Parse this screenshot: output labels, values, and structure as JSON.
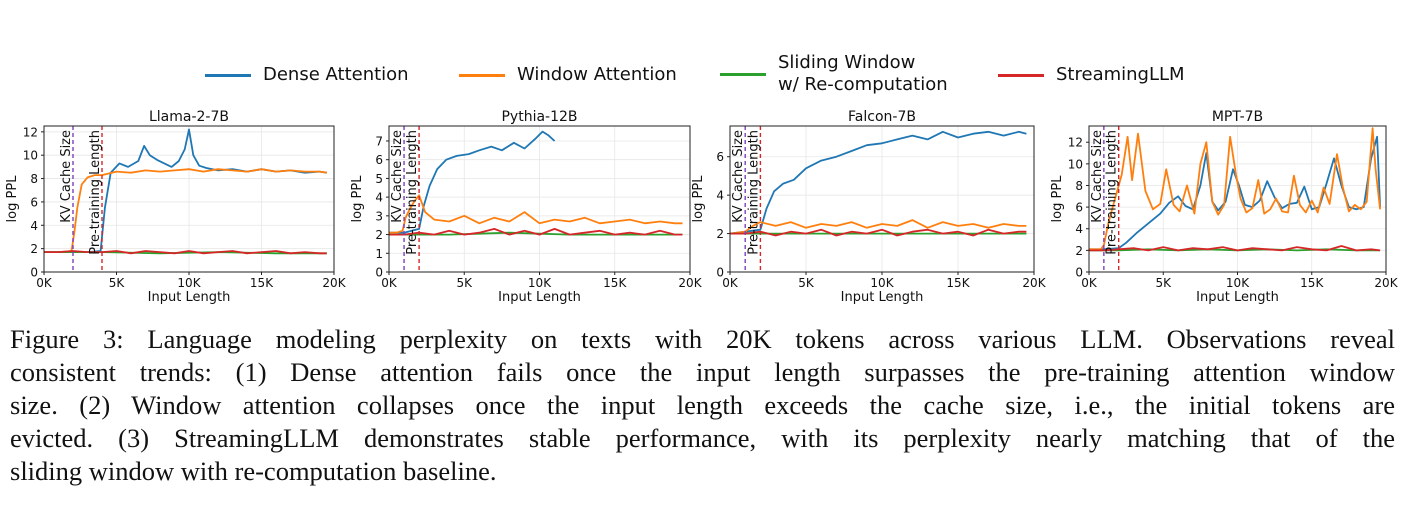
{
  "legend": [
    {
      "label": "Dense Attention",
      "color": "#1f77b4"
    },
    {
      "label": "Window Attention",
      "color": "#ff7f0e"
    },
    {
      "label": "Sliding Window\nw/ Re-computation",
      "color": "#2ca02c"
    },
    {
      "label": "StreamingLLM",
      "color": "#d62728"
    }
  ],
  "chart_data": [
    {
      "type": "line",
      "title": "Llama-2-7B",
      "xlabel": "Input Length",
      "ylabel": "log PPL",
      "xlim": [
        0,
        20000
      ],
      "ylim": [
        0,
        12.5
      ],
      "xticks": [
        0,
        5000,
        10000,
        15000,
        20000
      ],
      "xtick_labels": [
        "0K",
        "5K",
        "10K",
        "15K",
        "20K"
      ],
      "yticks": [
        0,
        2,
        4,
        6,
        8,
        10,
        12
      ],
      "grid": true,
      "vlines": [
        {
          "x": 2000,
          "label": "KV Cache Size",
          "color": "#7f3fbf"
        },
        {
          "x": 4000,
          "label": "Pre-training Length",
          "color": "#d62728"
        }
      ],
      "series": [
        {
          "name": "Dense Attention",
          "color": "#1f77b4",
          "x": [
            0,
            1000,
            2000,
            3000,
            3900,
            4200,
            4600,
            5200,
            5800,
            6500,
            6900,
            7300,
            7800,
            8300,
            8800,
            9300,
            9700,
            10000,
            10300,
            10700,
            11200,
            12000,
            13000,
            14000,
            15000,
            16000,
            17000,
            18000,
            19000,
            19500
          ],
          "y": [
            1.7,
            1.7,
            1.7,
            1.7,
            1.8,
            5.5,
            8.5,
            9.3,
            9.0,
            9.5,
            10.8,
            10.0,
            9.6,
            9.3,
            9.0,
            9.5,
            10.5,
            12.2,
            10.0,
            9.1,
            8.9,
            8.7,
            8.8,
            8.6,
            8.8,
            8.6,
            8.7,
            8.5,
            8.6,
            8.5
          ]
        },
        {
          "name": "Window Attention",
          "color": "#ff7f0e",
          "x": [
            0,
            1000,
            1900,
            2100,
            2300,
            2600,
            3000,
            3500,
            4000,
            5000,
            6000,
            7000,
            8000,
            9000,
            10000,
            11000,
            12000,
            13000,
            14000,
            15000,
            16000,
            17000,
            18000,
            19000,
            19500
          ],
          "y": [
            1.7,
            1.7,
            1.8,
            3.5,
            5.5,
            7.5,
            8.1,
            8.3,
            8.3,
            8.6,
            8.5,
            8.7,
            8.6,
            8.7,
            8.8,
            8.6,
            8.8,
            8.7,
            8.6,
            8.8,
            8.6,
            8.7,
            8.6,
            8.6,
            8.5
          ]
        },
        {
          "name": "Sliding Window w/ Re-computation",
          "color": "#2ca02c",
          "x": [
            0,
            4000,
            8000,
            12000,
            16000,
            19500
          ],
          "y": [
            1.7,
            1.7,
            1.6,
            1.7,
            1.6,
            1.6
          ]
        },
        {
          "name": "StreamingLLM",
          "color": "#d62728",
          "x": [
            0,
            1000,
            2000,
            3000,
            4000,
            5000,
            6000,
            7000,
            8000,
            9000,
            10000,
            11000,
            12000,
            13000,
            14000,
            15000,
            16000,
            17000,
            18000,
            19000,
            19500
          ],
          "y": [
            1.7,
            1.7,
            1.8,
            1.7,
            1.7,
            1.8,
            1.6,
            1.8,
            1.7,
            1.6,
            1.8,
            1.6,
            1.7,
            1.8,
            1.6,
            1.7,
            1.8,
            1.6,
            1.7,
            1.6,
            1.6
          ]
        }
      ]
    },
    {
      "type": "line",
      "title": "Pythia-12B",
      "xlabel": "Input Length",
      "ylabel": "log PPL",
      "xlim": [
        0,
        20000
      ],
      "ylim": [
        0,
        7.8
      ],
      "xticks": [
        0,
        5000,
        10000,
        15000,
        20000
      ],
      "xtick_labels": [
        "0K",
        "5K",
        "10K",
        "15K",
        "20K"
      ],
      "yticks": [
        0,
        1,
        2,
        3,
        4,
        5,
        6,
        7
      ],
      "grid": true,
      "vlines": [
        {
          "x": 1000,
          "label": "KV Cache Size",
          "color": "#7f3fbf"
        },
        {
          "x": 2000,
          "label": "Pre-training Length",
          "color": "#d62728"
        }
      ],
      "series": [
        {
          "name": "Dense Attention",
          "color": "#1f77b4",
          "x": [
            0,
            500,
            1000,
            1500,
            2000,
            2300,
            2700,
            3200,
            3800,
            4500,
            5300,
            6000,
            6800,
            7500,
            8300,
            9000,
            9700,
            10200,
            10600,
            11000
          ],
          "y": [
            2.1,
            2.1,
            2.1,
            2.2,
            2.3,
            3.5,
            4.6,
            5.5,
            6.0,
            6.2,
            6.3,
            6.5,
            6.7,
            6.5,
            6.9,
            6.6,
            7.1,
            7.5,
            7.3,
            7.0
          ]
        },
        {
          "name": "Window Attention",
          "color": "#ff7f0e",
          "x": [
            0,
            500,
            900,
            1100,
            1400,
            1700,
            2000,
            2400,
            3000,
            4000,
            5000,
            6000,
            7000,
            8000,
            9000,
            10000,
            11000,
            12000,
            13000,
            14000,
            15000,
            16000,
            17000,
            18000,
            19000,
            19500
          ],
          "y": [
            2.1,
            2.1,
            2.2,
            2.9,
            3.4,
            3.8,
            4.1,
            3.2,
            2.8,
            2.7,
            3.0,
            2.6,
            2.9,
            2.7,
            3.2,
            2.6,
            2.8,
            2.7,
            2.9,
            2.6,
            2.7,
            2.8,
            2.6,
            2.7,
            2.6,
            2.6
          ]
        },
        {
          "name": "Sliding Window w/ Re-computation",
          "color": "#2ca02c",
          "x": [
            0,
            4000,
            8000,
            12000,
            16000,
            19500
          ],
          "y": [
            2.0,
            2.0,
            2.1,
            2.0,
            2.0,
            2.0
          ]
        },
        {
          "name": "StreamingLLM",
          "color": "#d62728",
          "x": [
            0,
            1000,
            2000,
            3000,
            4000,
            5000,
            6000,
            7000,
            8000,
            9000,
            10000,
            11000,
            12000,
            13000,
            14000,
            15000,
            16000,
            17000,
            18000,
            19000,
            19500
          ],
          "y": [
            2.0,
            2.0,
            2.1,
            2.0,
            2.2,
            2.0,
            2.1,
            2.3,
            2.0,
            2.2,
            2.0,
            2.3,
            2.0,
            2.1,
            2.2,
            2.0,
            2.1,
            2.0,
            2.2,
            2.0,
            2.0
          ]
        }
      ]
    },
    {
      "type": "line",
      "title": "Falcon-7B",
      "xlabel": "Input Length",
      "ylabel": "log PPL",
      "xlim": [
        0,
        20000
      ],
      "ylim": [
        0,
        7.6
      ],
      "xticks": [
        0,
        5000,
        10000,
        15000,
        20000
      ],
      "xtick_labels": [
        "0K",
        "5K",
        "10K",
        "15K",
        "20K"
      ],
      "yticks": [
        0,
        2,
        4,
        6
      ],
      "grid": true,
      "vlines": [
        {
          "x": 1000,
          "label": "KV Cache Size",
          "color": "#7f3fbf"
        },
        {
          "x": 2000,
          "label": "Pre-training Length",
          "color": "#d62728"
        }
      ],
      "series": [
        {
          "name": "Dense Attention",
          "color": "#1f77b4",
          "x": [
            0,
            1000,
            2000,
            2400,
            2900,
            3500,
            4200,
            5000,
            6000,
            7000,
            8000,
            9000,
            10000,
            11000,
            12000,
            13000,
            14000,
            15000,
            16000,
            17000,
            18000,
            19000,
            19500
          ],
          "y": [
            2.0,
            2.1,
            2.2,
            3.3,
            4.2,
            4.6,
            4.8,
            5.4,
            5.8,
            6.0,
            6.3,
            6.6,
            6.7,
            6.9,
            7.1,
            6.9,
            7.3,
            7.0,
            7.2,
            7.3,
            7.1,
            7.3,
            7.2
          ]
        },
        {
          "name": "Window Attention",
          "color": "#ff7f0e",
          "x": [
            0,
            1000,
            1500,
            2000,
            3000,
            4000,
            5000,
            6000,
            7000,
            8000,
            9000,
            10000,
            11000,
            12000,
            13000,
            14000,
            15000,
            16000,
            17000,
            18000,
            19000,
            19500
          ],
          "y": [
            2.0,
            2.1,
            2.4,
            2.6,
            2.4,
            2.6,
            2.3,
            2.5,
            2.4,
            2.6,
            2.3,
            2.5,
            2.4,
            2.7,
            2.3,
            2.6,
            2.4,
            2.5,
            2.3,
            2.5,
            2.4,
            2.4
          ]
        },
        {
          "name": "Sliding Window w/ Re-computation",
          "color": "#2ca02c",
          "x": [
            0,
            4000,
            8000,
            12000,
            16000,
            19500
          ],
          "y": [
            2.0,
            2.0,
            2.0,
            2.0,
            2.0,
            2.0
          ]
        },
        {
          "name": "StreamingLLM",
          "color": "#d62728",
          "x": [
            0,
            1000,
            2000,
            3000,
            4000,
            5000,
            6000,
            7000,
            8000,
            9000,
            10000,
            11000,
            12000,
            13000,
            14000,
            15000,
            16000,
            17000,
            18000,
            19000,
            19500
          ],
          "y": [
            2.0,
            2.0,
            2.1,
            1.9,
            2.1,
            2.0,
            2.2,
            1.9,
            2.1,
            2.0,
            2.2,
            1.9,
            2.1,
            2.2,
            2.0,
            2.1,
            1.9,
            2.2,
            2.0,
            2.1,
            2.1
          ]
        }
      ]
    },
    {
      "type": "line",
      "title": "MPT-7B",
      "xlabel": "Input Length",
      "ylabel": "log PPL",
      "xlim": [
        0,
        20000
      ],
      "ylim": [
        0,
        13.5
      ],
      "xticks": [
        0,
        5000,
        10000,
        15000,
        20000
      ],
      "xtick_labels": [
        "0K",
        "5K",
        "10K",
        "15K",
        "20K"
      ],
      "yticks": [
        0,
        2,
        4,
        6,
        8,
        10,
        12
      ],
      "grid": true,
      "vlines": [
        {
          "x": 1000,
          "label": "KV Cache Size",
          "color": "#7f3fbf"
        },
        {
          "x": 2000,
          "label": "Pre-training Length",
          "color": "#d62728"
        }
      ],
      "series": [
        {
          "name": "Dense Attention",
          "color": "#1f77b4",
          "x": [
            0,
            1000,
            2000,
            2500,
            3200,
            4000,
            4800,
            5400,
            6000,
            6500,
            7000,
            7500,
            7900,
            8300,
            8700,
            9200,
            9700,
            10100,
            10500,
            11000,
            11500,
            12000,
            12500,
            13000,
            13500,
            14000,
            14500,
            15000,
            15500,
            16000,
            16500,
            17000,
            17500,
            18000,
            18500,
            19000,
            19400,
            19600
          ],
          "y": [
            2.1,
            2.1,
            2.2,
            2.7,
            3.6,
            4.5,
            5.4,
            6.4,
            7.0,
            6.1,
            5.8,
            8.0,
            11.0,
            6.5,
            5.7,
            6.5,
            9.5,
            8.0,
            6.2,
            6.0,
            6.6,
            8.4,
            6.9,
            5.9,
            6.3,
            6.4,
            7.9,
            5.8,
            6.0,
            8.2,
            10.5,
            8.0,
            6.0,
            5.8,
            6.0,
            10.5,
            12.5,
            6.0
          ]
        },
        {
          "name": "Window Attention",
          "color": "#ff7f0e",
          "x": [
            0,
            800,
            1000,
            1300,
            1700,
            2200,
            2600,
            2900,
            3300,
            3800,
            4300,
            4800,
            5200,
            5700,
            6100,
            6600,
            7100,
            7500,
            7900,
            8300,
            8700,
            9100,
            9500,
            9900,
            10200,
            10600,
            11000,
            11400,
            11800,
            12200,
            12600,
            13000,
            13400,
            13800,
            14200,
            14600,
            15000,
            15400,
            15800,
            16200,
            16700,
            17100,
            17500,
            17900,
            18300,
            18700,
            19100,
            19300,
            19600
          ],
          "y": [
            2.1,
            2.1,
            2.5,
            4.5,
            6.5,
            9.0,
            12.5,
            8.5,
            12.8,
            7.5,
            5.8,
            6.3,
            9.5,
            6.2,
            5.6,
            8.0,
            5.4,
            10.0,
            12.0,
            6.5,
            5.3,
            6.2,
            12.5,
            9.0,
            6.8,
            5.5,
            5.9,
            8.5,
            5.4,
            5.8,
            6.8,
            5.6,
            5.5,
            8.9,
            6.2,
            5.5,
            6.6,
            5.5,
            7.8,
            6.3,
            10.9,
            7.8,
            5.6,
            6.2,
            5.8,
            6.5,
            13.3,
            9.5,
            5.8
          ]
        },
        {
          "name": "Sliding Window w/ Re-computation",
          "color": "#2ca02c",
          "x": [
            0,
            2000,
            4000,
            6000,
            8000,
            10000,
            12000,
            14000,
            16000,
            18000,
            19600
          ],
          "y": [
            2.0,
            2.0,
            2.1,
            2.0,
            2.1,
            2.0,
            2.1,
            2.0,
            2.1,
            2.0,
            2.0
          ]
        },
        {
          "name": "StreamingLLM",
          "color": "#d62728",
          "x": [
            0,
            1000,
            2000,
            3000,
            4000,
            5000,
            6000,
            7000,
            8000,
            9000,
            10000,
            11000,
            12000,
            13000,
            14000,
            15000,
            16000,
            17000,
            18000,
            19000,
            19600
          ],
          "y": [
            2.0,
            2.0,
            2.1,
            2.2,
            2.0,
            2.3,
            2.0,
            2.2,
            2.1,
            2.3,
            2.0,
            2.2,
            2.1,
            2.0,
            2.3,
            2.1,
            2.0,
            2.4,
            2.0,
            2.1,
            2.0
          ]
        }
      ]
    }
  ],
  "caption": [
    "Figure 3: Language modeling perplexity on texts with 20K tokens across various LLM. Observations reveal",
    "consistent trends: (1) Dense attention fails once the input length surpasses the pre-training attention window",
    "size. (2) Window attention collapses once the input length exceeds the cache size, i.e., the initial tokens are",
    "evicted. (3) StreamingLLM demonstrates stable performance, with its perplexity nearly matching that of the",
    "sliding window with re-computation baseline."
  ]
}
